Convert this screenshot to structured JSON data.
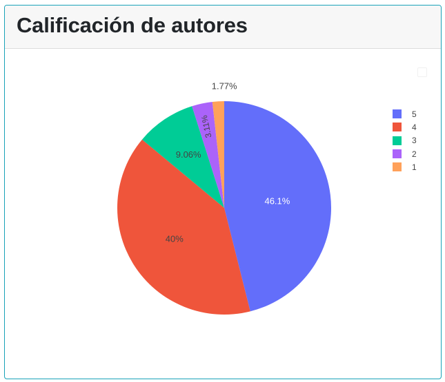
{
  "card": {
    "title": "Calificación de autores"
  },
  "chart_data": {
    "type": "pie",
    "sort": "descending",
    "direction": "clockwise",
    "labels": [
      "5",
      "4",
      "3",
      "2",
      "1"
    ],
    "values": [
      46.1,
      40,
      9.06,
      3.11,
      1.77
    ],
    "text": [
      "46.1%",
      "40%",
      "9.06%",
      "3.11%",
      "1.77%"
    ],
    "colors": [
      "#636efa",
      "#ef553b",
      "#00cc96",
      "#ab63fa",
      "#ffa15a"
    ],
    "legend": {
      "placement": "top-right",
      "entries": [
        "5",
        "4",
        "3",
        "2",
        "1"
      ]
    }
  }
}
